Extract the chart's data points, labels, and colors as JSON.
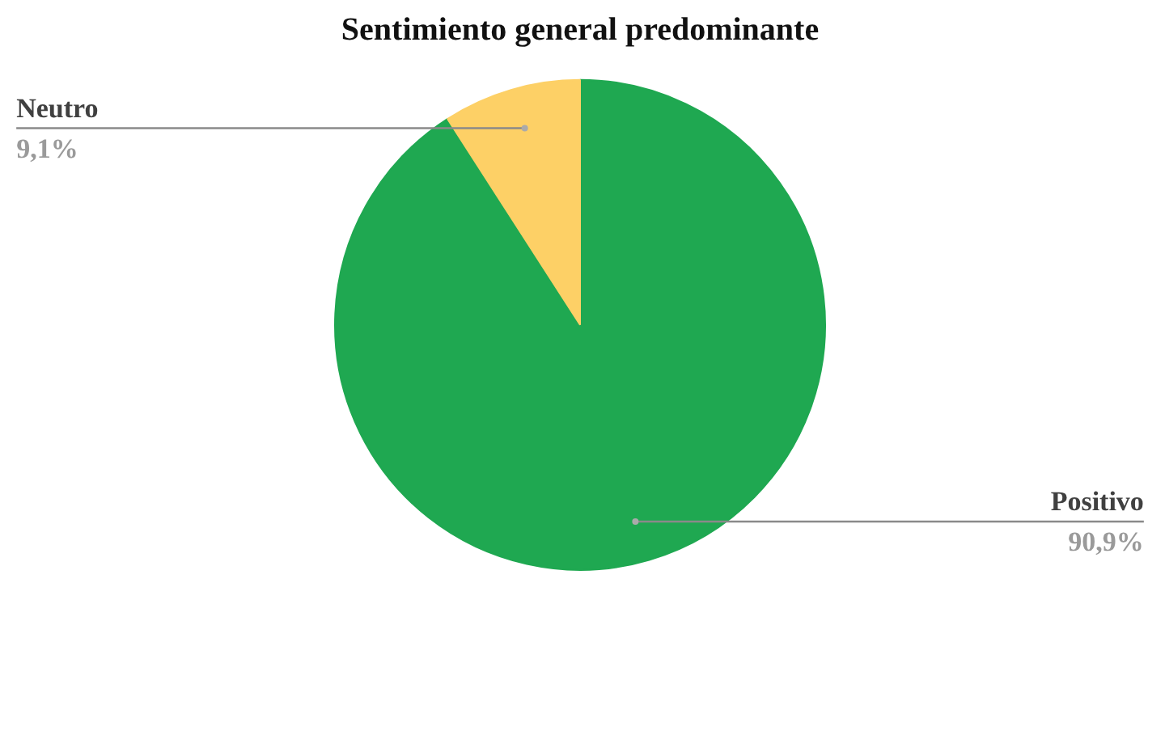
{
  "chart_data": {
    "type": "pie",
    "title": "Sentimiento general predominante",
    "categories": [
      "Positivo",
      "Neutro"
    ],
    "values": [
      90.9,
      9.1
    ],
    "colors": [
      "#1fa851",
      "#fdd066"
    ],
    "value_labels": [
      "90,9%",
      "9,1%"
    ]
  }
}
